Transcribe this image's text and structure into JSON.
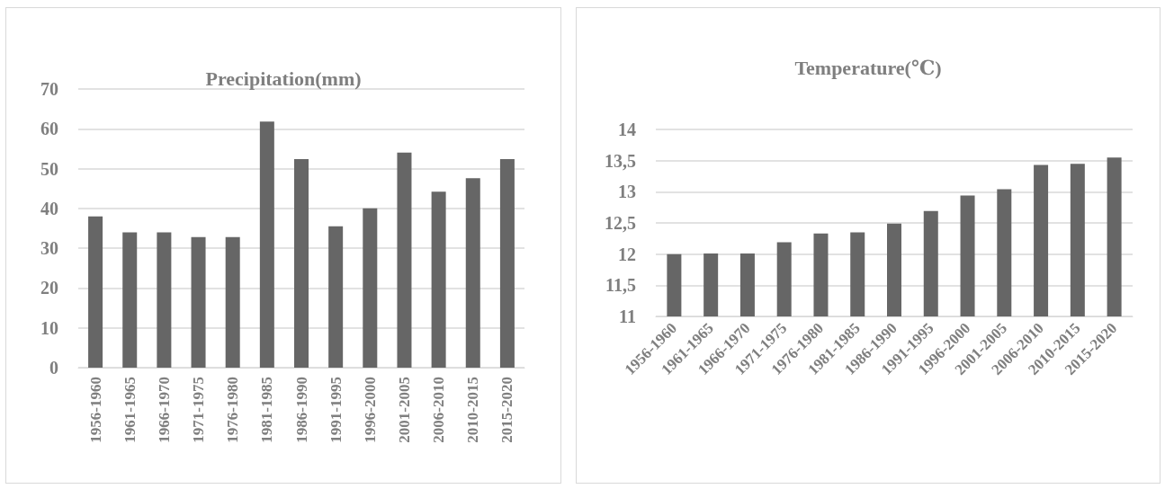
{
  "chart_data": [
    {
      "type": "bar",
      "title": "Precipitation(mm)",
      "categories": [
        "1956-1960",
        "1961-1965",
        "1966-1970",
        "1971-1975",
        "1976-1980",
        "1981-1985",
        "1986-1990",
        "1991-1995",
        "1996-2000",
        "2001-2005",
        "2006-2010",
        "2010-2015",
        "2015-2020"
      ],
      "values": [
        38,
        34,
        34,
        32.8,
        32.8,
        61.8,
        52.4,
        35.5,
        40,
        54,
        44.2,
        47.6,
        52.4
      ],
      "color": "#666666",
      "ylim": [
        0,
        70
      ],
      "yticks": [
        0,
        10,
        20,
        30,
        40,
        50,
        60,
        70
      ],
      "grid": "y"
    },
    {
      "type": "bar",
      "title": "Temperature(℃)",
      "categories": [
        "1956-1960",
        "1961-1965",
        "1966-1970",
        "1971-1975",
        "1976-1980",
        "1981-1985",
        "1986-1990",
        "1991-1995",
        "1996-2000",
        "2001-2005",
        "2006-2010",
        "2010-2015",
        "2015-2020"
      ],
      "values": [
        12,
        12.01,
        12.01,
        12.19,
        12.33,
        12.35,
        12.49,
        12.69,
        12.94,
        13.04,
        13.43,
        13.45,
        13.55
      ],
      "color": "#666666",
      "ylim": [
        11,
        14
      ],
      "yticks": [
        11,
        {
          "value": 11.5,
          "label": "11,5"
        },
        12,
        {
          "value": 12.5,
          "label": "12,5"
        },
        13,
        {
          "value": 13.5,
          "label": "13,5"
        },
        14
      ],
      "grid": "y"
    }
  ]
}
